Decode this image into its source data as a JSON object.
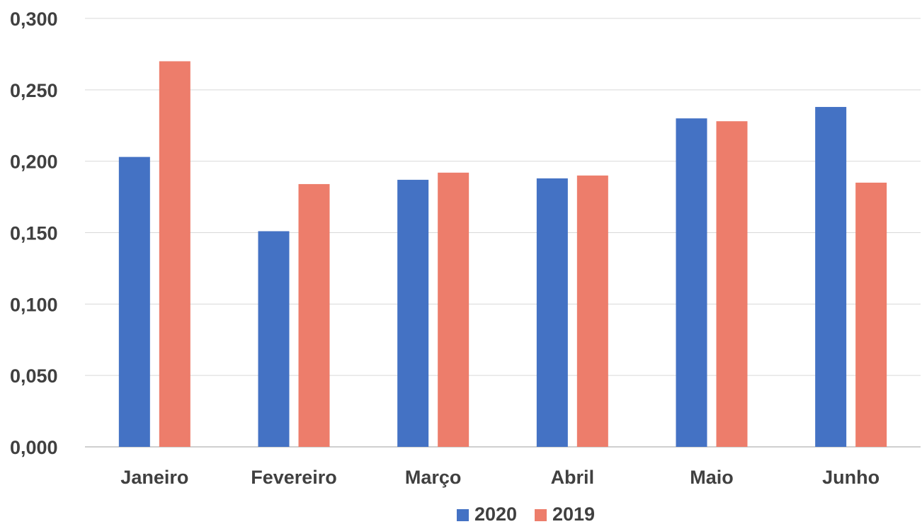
{
  "chart_data": {
    "type": "bar",
    "title": "",
    "xlabel": "",
    "ylabel": "",
    "categories": [
      "Janeiro",
      "Fevereiro",
      "Março",
      "Abril",
      "Maio",
      "Junho"
    ],
    "series": [
      {
        "name": "2020",
        "color": "#4472c4",
        "values": [
          0.203,
          0.151,
          0.187,
          0.188,
          0.23,
          0.238
        ]
      },
      {
        "name": "2019",
        "color": "#ed7d6b",
        "values": [
          0.27,
          0.184,
          0.192,
          0.19,
          0.228,
          0.185
        ]
      }
    ],
    "ylim": [
      0,
      0.3
    ],
    "yticks": [
      "0,000",
      "0,050",
      "0,100",
      "0,150",
      "0,200",
      "0,250",
      "0,300"
    ],
    "grid": true,
    "legend_position": "bottom"
  }
}
